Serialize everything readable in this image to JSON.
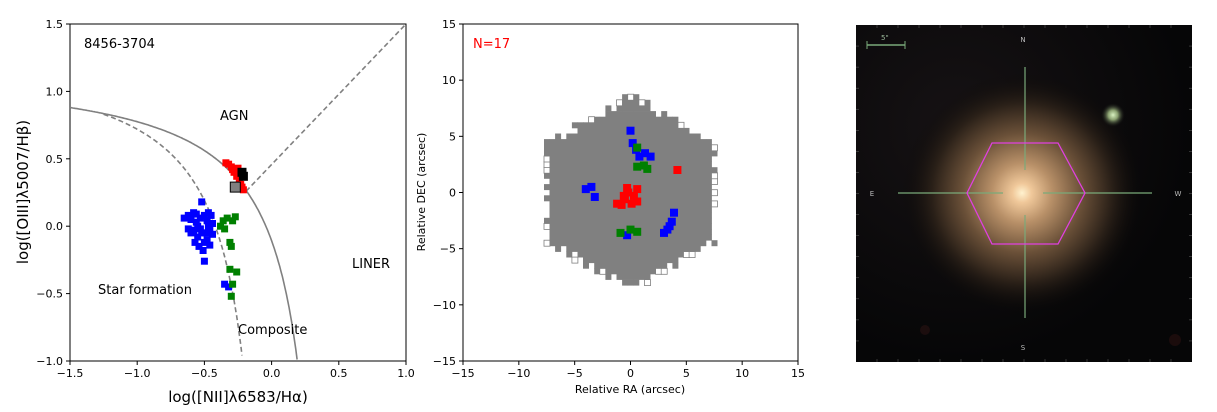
{
  "chart_data": [
    {
      "type": "scatter",
      "title": "",
      "annotation": "8456-3704",
      "xlabel": "log([NII]λ6583/Hα)",
      "ylabel": "log([OIII]λ5007/Hβ)",
      "xlim": [
        -1.5,
        1.0
      ],
      "ylim": [
        -1.0,
        1.5
      ],
      "xticks": [
        "−1.5",
        "−1.0",
        "−0.5",
        "0.0",
        "0.5",
        "1.0"
      ],
      "yticks": [
        "−1.0",
        "−0.5",
        "0.0",
        "0.5",
        "1.0",
        "1.5"
      ],
      "region_labels": [
        "AGN",
        "LINER",
        "Star formation",
        "Composite"
      ],
      "grid": false,
      "series": [
        {
          "color": "#0000ff",
          "points": [
            [
              -0.62,
              0.08
            ],
            [
              -0.6,
              0.05
            ],
            [
              -0.58,
              0.1
            ],
            [
              -0.56,
              0.03
            ],
            [
              -0.55,
              0.0
            ],
            [
              -0.53,
              0.06
            ],
            [
              -0.52,
              0.18
            ],
            [
              -0.5,
              0.08
            ],
            [
              -0.49,
              -0.05
            ],
            [
              -0.48,
              0.04
            ],
            [
              -0.47,
              0.0
            ],
            [
              -0.46,
              -0.03
            ],
            [
              -0.45,
              0.08
            ],
            [
              -0.44,
              -0.06
            ],
            [
              -0.58,
              -0.03
            ],
            [
              -0.55,
              -0.08
            ],
            [
              -0.52,
              -0.05
            ],
            [
              -0.5,
              -0.12
            ],
            [
              -0.48,
              -0.1
            ],
            [
              -0.46,
              -0.14
            ],
            [
              -0.6,
              -0.05
            ],
            [
              -0.62,
              -0.02
            ],
            [
              -0.57,
              -0.12
            ],
            [
              -0.54,
              -0.15
            ],
            [
              -0.51,
              -0.18
            ],
            [
              -0.5,
              -0.26
            ],
            [
              -0.53,
              -0.02
            ],
            [
              -0.47,
              0.1
            ],
            [
              -0.44,
              0.02
            ],
            [
              -0.65,
              0.06
            ],
            [
              -0.56,
              0.09
            ],
            [
              -0.35,
              -0.43
            ],
            [
              -0.32,
              -0.45
            ]
          ]
        },
        {
          "color": "#008000",
          "points": [
            [
              -0.38,
              0.0
            ],
            [
              -0.36,
              0.04
            ],
            [
              -0.35,
              -0.02
            ],
            [
              -0.33,
              0.06
            ],
            [
              -0.31,
              -0.12
            ],
            [
              -0.3,
              -0.15
            ],
            [
              -0.29,
              0.04
            ],
            [
              -0.27,
              0.07
            ],
            [
              -0.31,
              -0.32
            ],
            [
              -0.26,
              -0.34
            ],
            [
              -0.29,
              -0.43
            ],
            [
              -0.3,
              -0.52
            ]
          ]
        },
        {
          "color": "#ff0000",
          "points": [
            [
              -0.34,
              0.47
            ],
            [
              -0.32,
              0.46
            ],
            [
              -0.3,
              0.44
            ],
            [
              -0.29,
              0.42
            ],
            [
              -0.28,
              0.4
            ],
            [
              -0.26,
              0.37
            ],
            [
              -0.25,
              0.43
            ],
            [
              -0.24,
              0.34
            ],
            [
              -0.23,
              0.31
            ],
            [
              -0.22,
              0.29
            ],
            [
              -0.21,
              0.27
            ]
          ]
        },
        {
          "color": "#000000",
          "points": [
            [
              -0.22,
              0.4
            ],
            [
              -0.21,
              0.37
            ]
          ]
        },
        {
          "color": "#808080",
          "points": [
            [
              -0.27,
              0.29
            ]
          ]
        }
      ]
    },
    {
      "type": "scatter",
      "title": "",
      "annotation": "N=17",
      "annotation_color": "#ff0000",
      "xlabel": "Relative RA (arcsec)",
      "ylabel": "Relative DEC (arcsec)",
      "xlim": [
        -15,
        15
      ],
      "ylim": [
        -15,
        15
      ],
      "xticks": [
        "−15",
        "−10",
        "−5",
        "0",
        "5",
        "10",
        "15"
      ],
      "yticks": [
        "−15",
        "−10",
        "−5",
        "0",
        "5",
        "10",
        "15"
      ],
      "grid": false,
      "footprint": {
        "shape": "hexagon",
        "color": "#808080"
      },
      "series": [
        {
          "color": "#0000ff",
          "points": [
            [
              0.0,
              5.5
            ],
            [
              0.2,
              4.4
            ],
            [
              0.5,
              3.8
            ],
            [
              0.8,
              3.2
            ],
            [
              1.3,
              3.5
            ],
            [
              1.8,
              3.2
            ],
            [
              -3.5,
              0.5
            ],
            [
              -3.2,
              -0.4
            ],
            [
              -4.0,
              0.3
            ],
            [
              3.9,
              -1.8
            ],
            [
              3.7,
              -2.6
            ],
            [
              3.3,
              -3.3
            ],
            [
              3.0,
              -3.6
            ],
            [
              3.5,
              -3.0
            ],
            [
              -0.3,
              -3.8
            ]
          ]
        },
        {
          "color": "#008000",
          "points": [
            [
              0.6,
              4.0
            ],
            [
              0.6,
              2.3
            ],
            [
              1.2,
              2.4
            ],
            [
              1.5,
              2.1
            ],
            [
              -0.9,
              -3.6
            ],
            [
              0.0,
              -3.3
            ],
            [
              0.6,
              -3.5
            ]
          ]
        },
        {
          "color": "#ff0000",
          "points": [
            [
              -1.2,
              -1.0
            ],
            [
              -0.8,
              -1.1
            ],
            [
              -0.5,
              -0.6
            ],
            [
              -0.2,
              0.0
            ],
            [
              0.3,
              -0.3
            ],
            [
              0.6,
              -0.8
            ],
            [
              0.6,
              0.3
            ],
            [
              -0.6,
              -0.3
            ],
            [
              0.1,
              -1.0
            ],
            [
              -0.3,
              0.4
            ],
            [
              4.2,
              2.0
            ]
          ]
        }
      ]
    }
  ],
  "image_panel": {
    "scale_label": "5\"",
    "compass": {
      "north": "N",
      "south": "S",
      "east": "E",
      "west": "W"
    },
    "crosshair_color": "#7aaa7a",
    "ifu_outline_color": "#e040e0"
  }
}
